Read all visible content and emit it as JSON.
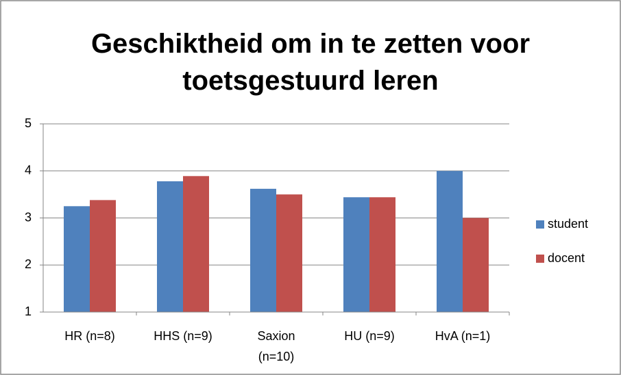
{
  "chart_data": {
    "type": "bar",
    "title": "Geschiktheid om in te zetten voor toetsgestuurd leren",
    "categories": [
      "HR (n=8)",
      "HHS (n=9)",
      "Saxion (n=10)",
      "HU (n=9)",
      "HvA (n=1)"
    ],
    "series": [
      {
        "name": "student",
        "color": "#4f81bd",
        "values": [
          3.25,
          3.78,
          3.62,
          3.44,
          4
        ]
      },
      {
        "name": "docent",
        "color": "#c0504d",
        "values": [
          3.38,
          3.89,
          3.5,
          3.44,
          3
        ]
      }
    ],
    "ylim": [
      1,
      5
    ],
    "yticks": [
      1,
      2,
      3,
      4,
      5
    ],
    "grid": true,
    "legend": "right"
  }
}
